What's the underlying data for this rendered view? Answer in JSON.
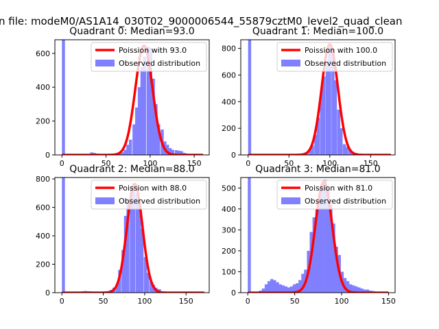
{
  "suptitle": "n file: modeM0/AS1A14_030T02_9000006544_55879cztM0_level2_quad_clean",
  "colors": {
    "poisson": "#ff0000",
    "observed": "#8080ff",
    "axes": "#000000"
  },
  "chart_data": [
    {
      "type": "bar",
      "title": "Quadrant 0: Median=93.0",
      "median": 93.0,
      "xlim": [
        -8,
        167
      ],
      "ylim": [
        0,
        680
      ],
      "xticks": [
        0,
        50,
        100,
        150
      ],
      "yticks": [
        0,
        200,
        400,
        600
      ],
      "legend": {
        "placement": "top-right",
        "entries": [
          "Poission with 93.0",
          "Observed distribution"
        ]
      },
      "series": [
        {
          "name": "Poission with 93.0",
          "kind": "line",
          "mean": 93.0,
          "peak": 645,
          "sigma": 9.8,
          "x_range": [
            0,
            160
          ]
        },
        {
          "name": "Observed distribution",
          "kind": "histogram",
          "bin_width": 3.2,
          "x": [
            0,
            32,
            35,
            38,
            41,
            44,
            48,
            51,
            54,
            57,
            60,
            64,
            67,
            70,
            73,
            76,
            80,
            83,
            86,
            89,
            92,
            96,
            99,
            102,
            105,
            108,
            112,
            115,
            118,
            121,
            124,
            128,
            131,
            134,
            137,
            140,
            144,
            147,
            150,
            153,
            156
          ],
          "values": [
            680,
            15,
            12,
            8,
            5,
            5,
            3,
            3,
            3,
            5,
            8,
            10,
            15,
            30,
            60,
            90,
            180,
            280,
            400,
            520,
            580,
            640,
            630,
            450,
            300,
            180,
            150,
            80,
            60,
            40,
            30,
            28,
            25,
            22,
            12,
            8,
            6,
            5,
            3,
            3,
            2
          ]
        }
      ]
    },
    {
      "type": "bar",
      "title": "Quadrant 1: Median=100.0",
      "median": 100.0,
      "xlim": [
        -9,
        180
      ],
      "ylim": [
        0,
        865
      ],
      "xticks": [
        0,
        50,
        100,
        150
      ],
      "yticks": [
        0,
        200,
        400,
        600,
        800
      ],
      "legend": {
        "placement": "top-right",
        "entries": [
          "Poission with 100.0",
          "Observed distribution"
        ]
      },
      "series": [
        {
          "name": "Poission with 100.0",
          "kind": "line",
          "mean": 100.0,
          "peak": 830,
          "sigma": 10.0,
          "x_range": [
            0,
            175
          ]
        },
        {
          "name": "Observed distribution",
          "kind": "histogram",
          "bin_width": 3.5,
          "x": [
            0,
            63,
            67,
            70,
            74,
            77,
            81,
            84,
            88,
            91,
            95,
            98,
            102,
            105,
            109,
            112,
            116,
            119,
            123,
            126,
            130,
            133,
            137,
            140
          ],
          "values": [
            865,
            5,
            10,
            20,
            40,
            70,
            150,
            280,
            480,
            590,
            700,
            810,
            760,
            560,
            340,
            200,
            80,
            60,
            40,
            25,
            15,
            8,
            5,
            3
          ]
        }
      ]
    },
    {
      "type": "bar",
      "title": "Quadrant 2: Median=88.0",
      "median": 88.0,
      "xlim": [
        -8.5,
        178
      ],
      "ylim": [
        0,
        810
      ],
      "xticks": [
        0,
        50,
        100,
        150
      ],
      "yticks": [
        0,
        200,
        400,
        600,
        800
      ],
      "legend": {
        "placement": "top-right",
        "entries": [
          "Poission with 88.0",
          "Observed distribution"
        ]
      },
      "series": [
        {
          "name": "Poission with 88.0",
          "kind": "line",
          "mean": 88.0,
          "peak": 765,
          "sigma": 9.4,
          "x_range": [
            0,
            172
          ]
        },
        {
          "name": "Observed distribution",
          "kind": "histogram",
          "bin_width": 3.4,
          "x": [
            0,
            24,
            27,
            31,
            34,
            38,
            41,
            44,
            48,
            51,
            55,
            58,
            61,
            65,
            68,
            72,
            75,
            78,
            82,
            85,
            89,
            92,
            95,
            99,
            102,
            106,
            109,
            112,
            116,
            119,
            123,
            126
          ],
          "values": [
            810,
            10,
            12,
            10,
            8,
            6,
            5,
            5,
            5,
            8,
            12,
            20,
            35,
            60,
            160,
            300,
            540,
            660,
            730,
            770,
            700,
            650,
            450,
            250,
            140,
            80,
            55,
            35,
            25,
            10,
            5,
            3
          ]
        }
      ]
    },
    {
      "type": "bar",
      "title": "Quadrant 3: Median=81.0",
      "median": 81.0,
      "xlim": [
        -7.5,
        157
      ],
      "ylim": [
        0,
        550
      ],
      "xticks": [
        0,
        50,
        100,
        150
      ],
      "yticks": [
        0,
        100,
        200,
        300,
        400,
        500
      ],
      "legend": {
        "placement": "top-right",
        "entries": [
          "Poission with 81.0",
          "Observed distribution"
        ]
      },
      "series": [
        {
          "name": "Poission with 81.0",
          "kind": "line",
          "mean": 81.0,
          "peak": 530,
          "sigma": 9.0,
          "x_range": [
            0,
            150
          ]
        },
        {
          "name": "Observed distribution",
          "kind": "histogram",
          "bin_width": 3.0,
          "x": [
            0,
            12,
            15,
            18,
            21,
            24,
            27,
            30,
            33,
            36,
            39,
            42,
            45,
            48,
            51,
            54,
            57,
            60,
            63,
            66,
            69,
            72,
            75,
            78,
            81,
            84,
            87,
            90,
            93,
            96,
            99,
            102,
            105,
            108,
            111,
            114,
            117,
            120,
            123,
            126,
            129,
            132
          ],
          "values": [
            550,
            10,
            20,
            40,
            55,
            65,
            60,
            50,
            40,
            35,
            30,
            25,
            30,
            40,
            45,
            60,
            90,
            110,
            200,
            290,
            360,
            400,
            470,
            520,
            540,
            490,
            420,
            330,
            220,
            180,
            100,
            70,
            55,
            40,
            35,
            30,
            25,
            20,
            15,
            15,
            10,
            8
          ]
        }
      ]
    }
  ]
}
